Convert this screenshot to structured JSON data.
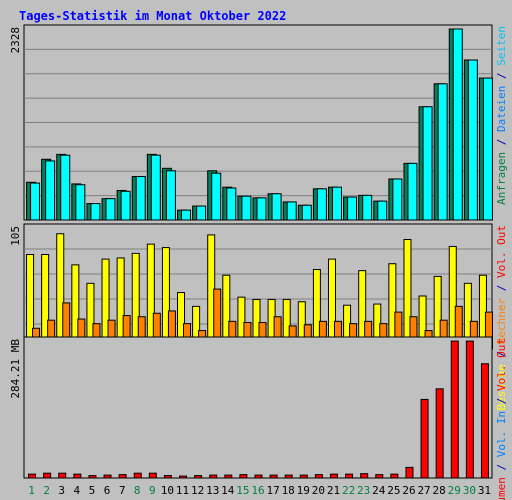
{
  "chart_data": {
    "type": "bar",
    "title": "Tages-Statistik im Monat Oktober 2022",
    "days": [
      "1",
      "2",
      "3",
      "4",
      "5",
      "6",
      "7",
      "8",
      "9",
      "10",
      "11",
      "12",
      "13",
      "14",
      "15",
      "16",
      "17",
      "18",
      "19",
      "20",
      "21",
      "22",
      "23",
      "24",
      "25",
      "26",
      "27",
      "28",
      "29",
      "30",
      "31"
    ],
    "weekend_days": [
      "1",
      "2",
      "8",
      "9",
      "15",
      "16",
      "22",
      "23",
      "29",
      "30"
    ],
    "panels": [
      {
        "id": "top",
        "ymax_label": "2328",
        "ymax": 2328,
        "right_labels": [
          "Anfragen",
          "/",
          "Dateien",
          "/",
          "Seiten"
        ],
        "series": [
          {
            "name": "Anfragen",
            "color": "#00805c",
            "values": [
              460,
              740,
              800,
              440,
              200,
              260,
              360,
              530,
              800,
              630,
              120,
              170,
              600,
              400,
              290,
              270,
              320,
              220,
              180,
              380,
              400,
              280,
              300,
              230,
              500,
              690,
              1380,
              1660,
              2328,
              1950,
              1730
            ]
          },
          {
            "name": "Dateien",
            "color": "#00ffff",
            "values": [
              450,
              720,
              790,
              430,
              200,
              260,
              350,
              530,
              790,
              600,
              120,
              170,
              570,
              390,
              290,
              270,
              320,
              220,
              180,
              380,
              400,
              280,
              300,
              230,
              500,
              690,
              1380,
              1660,
              2328,
              1950,
              1730
            ]
          },
          {
            "name": "Seiten",
            "color": "#00c0ff",
            "values": [
              0,
              0,
              0,
              0,
              0,
              0,
              0,
              0,
              0,
              0,
              0,
              0,
              0,
              0,
              0,
              0,
              0,
              0,
              0,
              0,
              0,
              0,
              0,
              0,
              0,
              0,
              0,
              0,
              0,
              0,
              0
            ]
          }
        ]
      },
      {
        "id": "middle",
        "ymax_label": "105",
        "ymax": 105,
        "right_labels": [
          "Besuche",
          "/",
          "Rechner",
          "/",
          "Vol. Out"
        ],
        "series": [
          {
            "name": "Besuche",
            "color": "#ffff00",
            "values": [
              82,
              82,
              100,
              73,
              57,
              78,
              79,
              83,
              91,
              88,
              49,
              37,
              99,
              64,
              45,
              43,
              43,
              43,
              41,
              69,
              78,
              38,
              68,
              39,
              74,
              95,
              46,
              63,
              89,
              57,
              64
            ]
          },
          {
            "name": "Rechner",
            "color": "#ff8000",
            "values": [
              18,
              25,
              40,
              26,
              22,
              25,
              29,
              28,
              31,
              33,
              22,
              16,
              52,
              24,
              23,
              23,
              28,
              20,
              21,
              24,
              24,
              22,
              24,
              22,
              32,
              28,
              16,
              25,
              37,
              24,
              32
            ]
          },
          {
            "name": "Vol. Out",
            "color": "#ff0000",
            "values": [
              0,
              0,
              0,
              0,
              0,
              0,
              0,
              0,
              0,
              0,
              0,
              0,
              0,
              0,
              0,
              0,
              0,
              0,
              0,
              0,
              0,
              0,
              0,
              0,
              0,
              0,
              0,
              0,
              0,
              0,
              0
            ]
          }
        ]
      },
      {
        "id": "bottom",
        "ymax_label": "284.21 MB",
        "ymax": 284.21,
        "right_labels": [
          "Volumen",
          "/",
          "Vol. In",
          "/",
          "Vol. Out"
        ],
        "series": [
          {
            "name": "Volumen",
            "color": "#ff0000",
            "values": [
              8,
              10,
              10,
              8,
              5,
              6,
              7,
              10,
              10,
              5,
              4,
              5,
              6,
              6,
              7,
              6,
              6,
              6,
              6,
              7,
              8,
              8,
              9,
              7,
              8,
              22,
              163,
              185,
              284,
              284,
              237
            ]
          }
        ]
      }
    ],
    "legend_colors": {
      "Anfragen": "#008040",
      "Dateien": "#0080ff",
      "Seiten": "#00c0ff",
      "Besuche": "#ffff00",
      "Rechner": "#ff8000",
      "Vol. Out": "#ff0000",
      "Volumen": "#ff0000",
      "Vol. In": "#0080ff",
      "separator": "#0000c0"
    }
  }
}
